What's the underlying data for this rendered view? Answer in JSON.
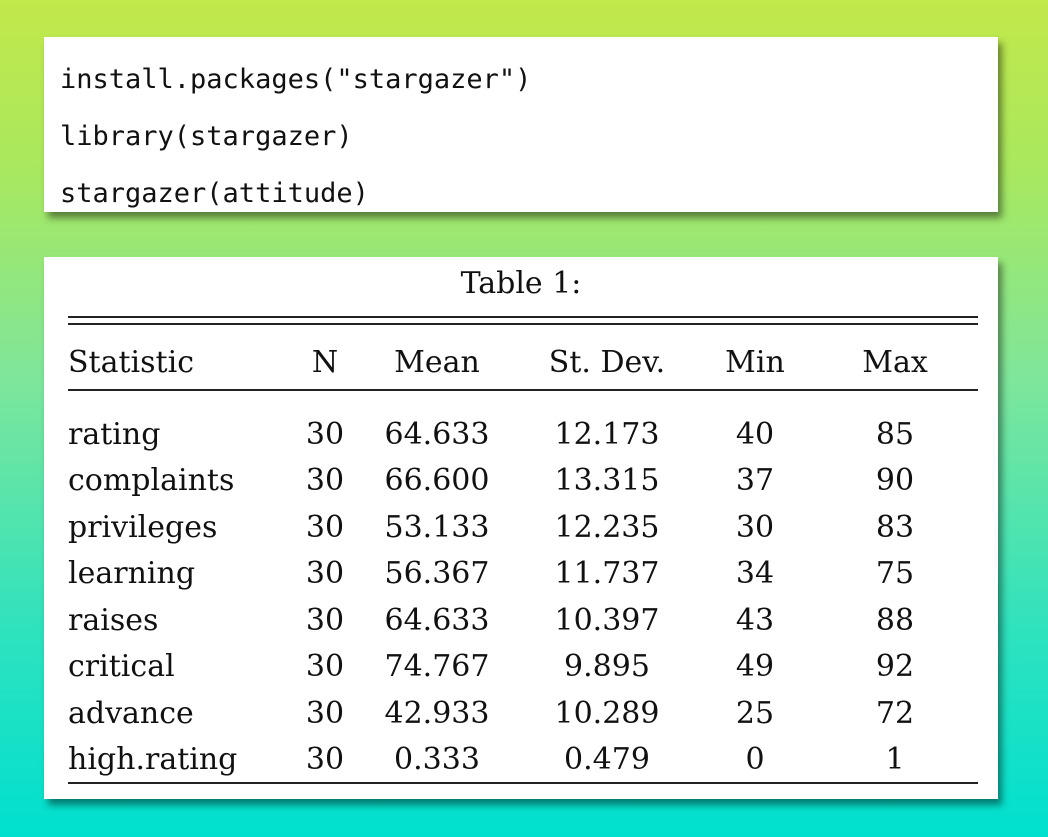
{
  "code": {
    "lines": [
      "install.packages(\"stargazer\")",
      "library(stargazer)",
      "stargazer(attitude)"
    ]
  },
  "table": {
    "caption": "Table 1:",
    "headers": [
      "Statistic",
      "N",
      "Mean",
      "St. Dev.",
      "Min",
      "Max"
    ],
    "rows": [
      [
        "rating",
        "30",
        "64.633",
        "12.173",
        "40",
        "85"
      ],
      [
        "complaints",
        "30",
        "66.600",
        "13.315",
        "37",
        "90"
      ],
      [
        "privileges",
        "30",
        "53.133",
        "12.235",
        "30",
        "83"
      ],
      [
        "learning",
        "30",
        "56.367",
        "11.737",
        "34",
        "75"
      ],
      [
        "raises",
        "30",
        "64.633",
        "10.397",
        "43",
        "88"
      ],
      [
        "critical",
        "30",
        "74.767",
        "9.895",
        "49",
        "92"
      ],
      [
        "advance",
        "30",
        "42.933",
        "10.289",
        "25",
        "72"
      ],
      [
        "high.rating",
        "30",
        "0.333",
        "0.479",
        "0",
        "1"
      ]
    ]
  },
  "colors": {
    "background_top": "#c2e84a",
    "background_bottom": "#00e0cf",
    "card": "#ffffff",
    "text": "#111111"
  }
}
